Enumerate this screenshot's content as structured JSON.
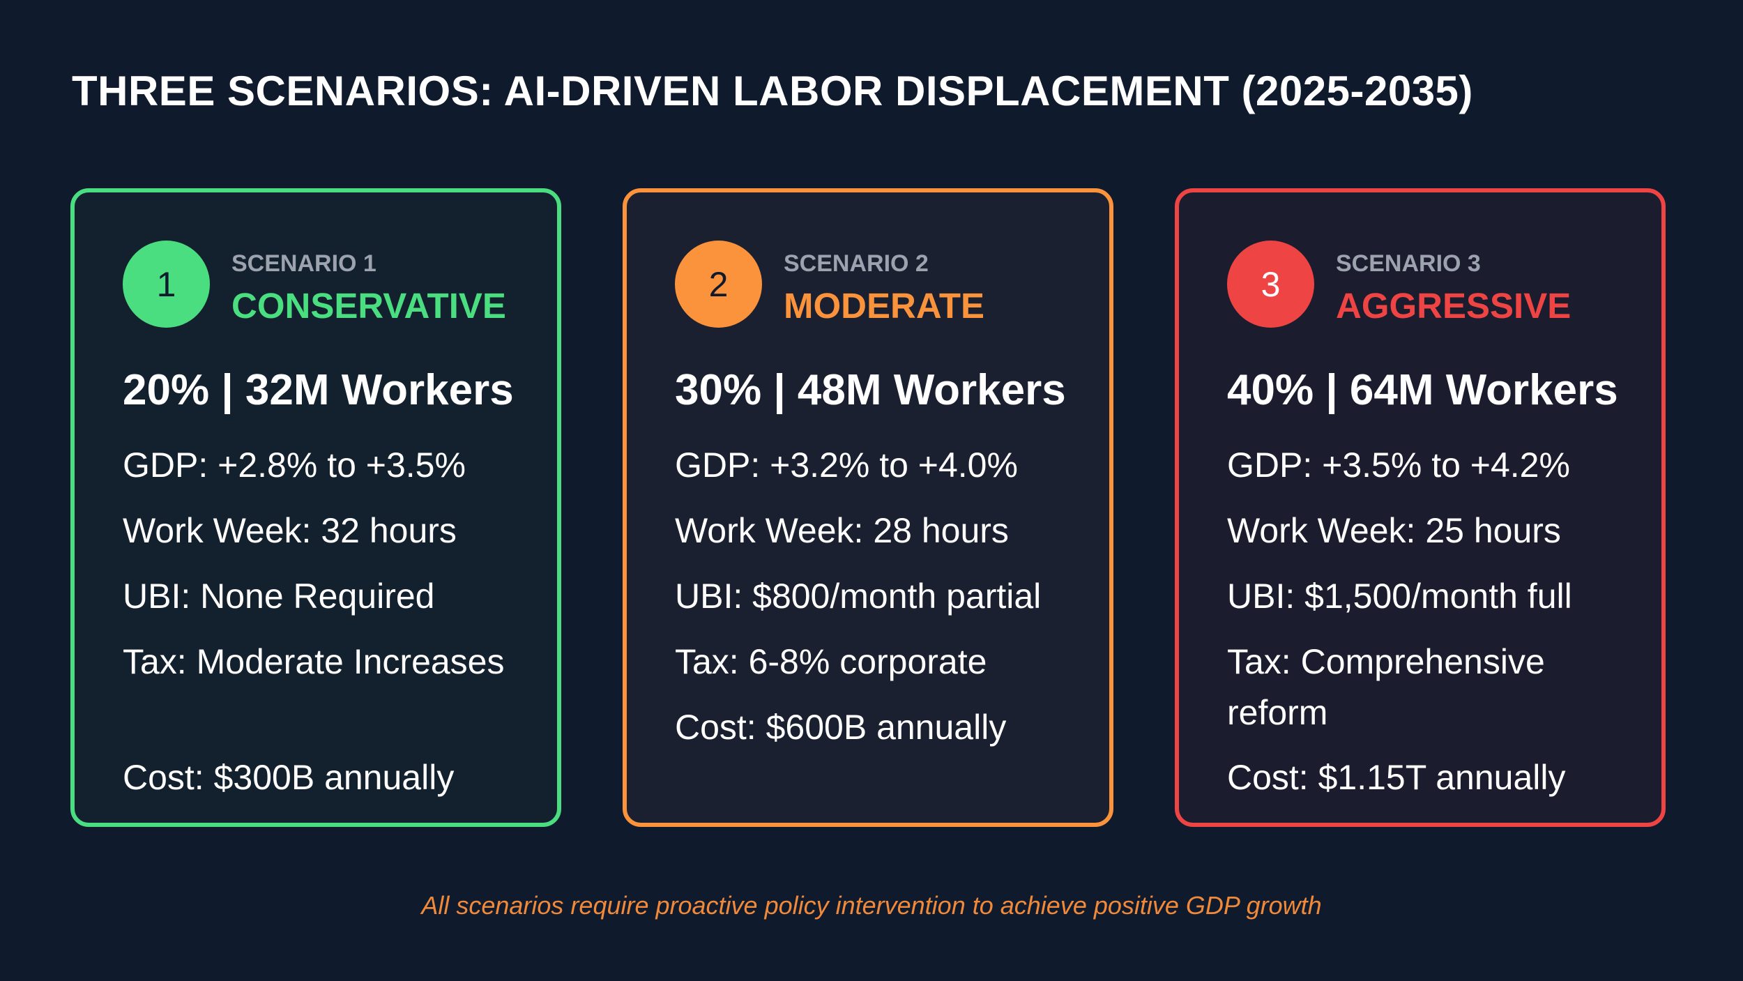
{
  "title": "THREE SCENARIOS: AI-DRIVEN LABOR DISPLACEMENT (2025-2035)",
  "colors": {
    "background": "#0f1a2d",
    "green": "#4ade80",
    "orange": "#fb923c",
    "red": "#ef4444"
  },
  "cards": [
    {
      "number": "1",
      "eyebrow": "SCENARIO 1",
      "name": "CONSERVATIVE",
      "headline": "20% | 32M Workers",
      "gdp": "GDP: +2.8% to +3.5%",
      "work_week": "Work Week: 32 hours",
      "ubi": "UBI: None Required",
      "tax": "Tax: Moderate Increases",
      "cost": "Cost: $300B annually"
    },
    {
      "number": "2",
      "eyebrow": "SCENARIO 2",
      "name": "MODERATE",
      "headline": "30% | 48M Workers",
      "gdp": "GDP: +3.2% to +4.0%",
      "work_week": "Work Week: 28 hours",
      "ubi": "UBI: $800/month partial",
      "tax": "Tax: 6-8% corporate",
      "cost": "Cost: $600B annually"
    },
    {
      "number": "3",
      "eyebrow": "SCENARIO 3",
      "name": "AGGRESSIVE",
      "headline": "40% | 64M Workers",
      "gdp": "GDP: +3.5% to +4.2%",
      "work_week": "Work Week: 25 hours",
      "ubi": "UBI: $1,500/month full",
      "tax": "Tax: Comprehensive reform",
      "cost": "Cost: $1.15T annually"
    }
  ],
  "footer": "All scenarios require proactive policy intervention to achieve positive GDP growth"
}
